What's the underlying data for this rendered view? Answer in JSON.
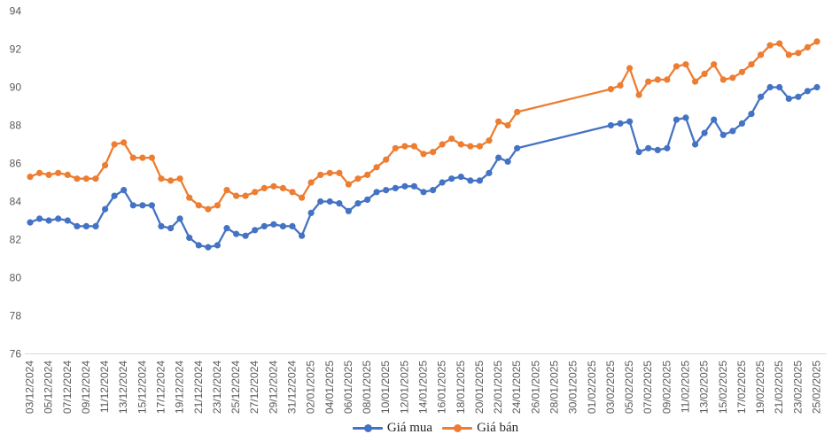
{
  "page": {
    "background": "#ffffff"
  },
  "chart_data": {
    "type": "line",
    "title": "",
    "xlabel": "",
    "ylabel": "",
    "ylim": [
      76,
      94
    ],
    "ytick_step": 2,
    "xtick_every": 2,
    "grid": false,
    "legend_position": "bottom-center",
    "axis_label_color": "#595959",
    "axis_line_color": "#d9d9d9",
    "x_labels": [
      "03/12/2024",
      "04/12/2024",
      "05/12/2024",
      "06/12/2024",
      "07/12/2024",
      "08/12/2024",
      "09/12/2024",
      "10/12/2024",
      "11/12/2024",
      "12/12/2024",
      "13/12/2024",
      "14/12/2024",
      "15/12/2024",
      "16/12/2024",
      "17/12/2024",
      "18/12/2024",
      "19/12/2024",
      "20/12/2024",
      "21/12/2024",
      "22/12/2024",
      "23/12/2024",
      "24/12/2024",
      "25/12/2024",
      "26/12/2024",
      "27/12/2024",
      "28/12/2024",
      "29/12/2024",
      "30/12/2024",
      "31/12/2024",
      "01/01/2025",
      "02/01/2025",
      "03/01/2025",
      "04/01/2025",
      "05/01/2025",
      "06/01/2025",
      "07/01/2025",
      "08/01/2025",
      "09/01/2025",
      "10/01/2025",
      "11/01/2025",
      "12/01/2025",
      "13/01/2025",
      "14/01/2025",
      "15/01/2025",
      "16/01/2025",
      "17/01/2025",
      "18/01/2025",
      "19/01/2025",
      "20/01/2025",
      "21/01/2025",
      "22/01/2025",
      "23/01/2025",
      "24/01/2025",
      "25/01/2025",
      "26/01/2025",
      "27/01/2025",
      "28/01/2025",
      "29/01/2025",
      "30/01/2025",
      "31/01/2025",
      "01/02/2025",
      "02/02/2025",
      "03/02/2025",
      "04/02/2025",
      "05/02/2025",
      "06/02/2025",
      "07/02/2025",
      "08/02/2025",
      "09/02/2025",
      "10/02/2025",
      "11/02/2025",
      "12/02/2025",
      "13/02/2025",
      "14/02/2025",
      "15/02/2025",
      "16/02/2025",
      "17/02/2025",
      "18/02/2025",
      "19/02/2025",
      "20/02/2025",
      "21/02/2025",
      "22/02/2025",
      "23/02/2025",
      "24/02/2025",
      "25/02/2025"
    ],
    "series": [
      {
        "name": "Giá mua",
        "color": "#4472C4",
        "values": [
          82.9,
          83.1,
          83.0,
          83.1,
          83.0,
          82.7,
          82.7,
          82.7,
          83.6,
          84.3,
          84.6,
          83.8,
          83.8,
          83.8,
          82.7,
          82.6,
          83.1,
          82.1,
          81.7,
          81.6,
          81.7,
          82.6,
          82.3,
          82.2,
          82.5,
          82.7,
          82.8,
          82.7,
          82.7,
          82.2,
          83.4,
          84.0,
          84.0,
          83.9,
          83.5,
          83.9,
          84.1,
          84.5,
          84.6,
          84.7,
          84.8,
          84.8,
          84.5,
          84.6,
          85.0,
          85.2,
          85.3,
          85.1,
          85.1,
          85.5,
          86.3,
          86.1,
          86.8,
          null,
          null,
          null,
          null,
          null,
          null,
          null,
          null,
          null,
          88.0,
          88.1,
          88.2,
          86.6,
          86.8,
          86.7,
          86.8,
          88.3,
          88.4,
          87.0,
          87.6,
          88.3,
          87.5,
          87.7,
          88.1,
          88.6,
          89.5,
          90.0,
          90.0,
          89.4,
          89.5,
          89.8,
          90.0
        ]
      },
      {
        "name": "Giá bán",
        "color": "#ED7D31",
        "values": [
          85.3,
          85.5,
          85.4,
          85.5,
          85.4,
          85.2,
          85.2,
          85.2,
          85.9,
          87.0,
          87.1,
          86.3,
          86.3,
          86.3,
          85.2,
          85.1,
          85.2,
          84.2,
          83.8,
          83.6,
          83.8,
          84.6,
          84.3,
          84.3,
          84.5,
          84.7,
          84.8,
          84.7,
          84.5,
          84.2,
          85.0,
          85.4,
          85.5,
          85.5,
          84.9,
          85.2,
          85.4,
          85.8,
          86.2,
          86.8,
          86.9,
          86.9,
          86.5,
          86.6,
          87.0,
          87.3,
          87.0,
          86.9,
          86.9,
          87.2,
          88.2,
          88.0,
          88.7,
          null,
          null,
          null,
          null,
          null,
          null,
          null,
          null,
          null,
          89.9,
          90.1,
          91.0,
          89.6,
          90.3,
          90.4,
          90.4,
          91.1,
          91.2,
          90.3,
          90.7,
          91.2,
          90.4,
          90.5,
          90.8,
          91.2,
          91.7,
          92.2,
          92.3,
          91.7,
          91.8,
          92.1,
          92.4
        ]
      }
    ]
  }
}
